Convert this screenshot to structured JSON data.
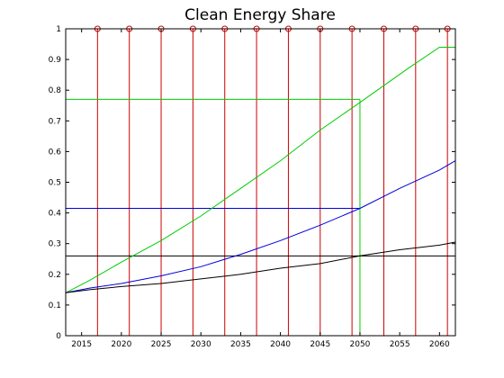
{
  "chart_data": {
    "type": "line",
    "title": "Clean Energy Share",
    "xlabel": "",
    "ylabel": "",
    "xlim": [
      2013,
      2062
    ],
    "ylim": [
      0,
      1
    ],
    "x_ticks": [
      2015,
      2020,
      2025,
      2030,
      2035,
      2040,
      2045,
      2050,
      2055,
      2060
    ],
    "y_ticks": [
      0,
      0.1,
      0.2,
      0.3,
      0.4,
      0.5,
      0.6,
      0.7,
      0.8,
      0.9,
      1
    ],
    "y_tick_labels": [
      "0",
      "0.1",
      "0.2",
      "0.3",
      "0.4",
      "0.5",
      "0.6",
      "0.7",
      "0.8",
      "0.9",
      "1"
    ],
    "grid": false,
    "series": [
      {
        "color": "#00cc00",
        "x": [
          2013,
          2016,
          2020,
          2025,
          2030,
          2035,
          2040,
          2045,
          2050,
          2056,
          2060,
          2062
        ],
        "y": [
          0.14,
          0.18,
          0.24,
          0.31,
          0.39,
          0.48,
          0.57,
          0.67,
          0.76,
          0.87,
          0.94,
          0.94
        ]
      },
      {
        "color": "#0000dd",
        "x": [
          2013,
          2016,
          2020,
          2025,
          2030,
          2035,
          2040,
          2045,
          2050,
          2055,
          2060,
          2062
        ],
        "y": [
          0.14,
          0.155,
          0.17,
          0.195,
          0.225,
          0.265,
          0.31,
          0.36,
          0.415,
          0.48,
          0.54,
          0.57
        ]
      },
      {
        "color": "#000000",
        "x": [
          2013,
          2016,
          2020,
          2025,
          2030,
          2035,
          2040,
          2045,
          2050,
          2055,
          2060,
          2062
        ],
        "y": [
          0.14,
          0.15,
          0.16,
          0.17,
          0.185,
          0.2,
          0.22,
          0.235,
          0.26,
          0.28,
          0.295,
          0.305
        ]
      }
    ],
    "reference_lines": [
      {
        "color": "#00cc00",
        "y": 0.77,
        "x_end": 2050,
        "drop_to_axis": true
      },
      {
        "color": "#0000dd",
        "y": 0.415,
        "x_end": 2050,
        "drop_to_axis": false
      },
      {
        "color": "#000000",
        "y": 0.26,
        "x_end": 2062,
        "drop_to_axis": false
      }
    ],
    "stems": {
      "color": "#cc0000",
      "x": [
        2017,
        2021,
        2025,
        2029,
        2033,
        2037,
        2041,
        2045,
        2049,
        2053,
        2057,
        2061
      ],
      "y": 1
    }
  }
}
